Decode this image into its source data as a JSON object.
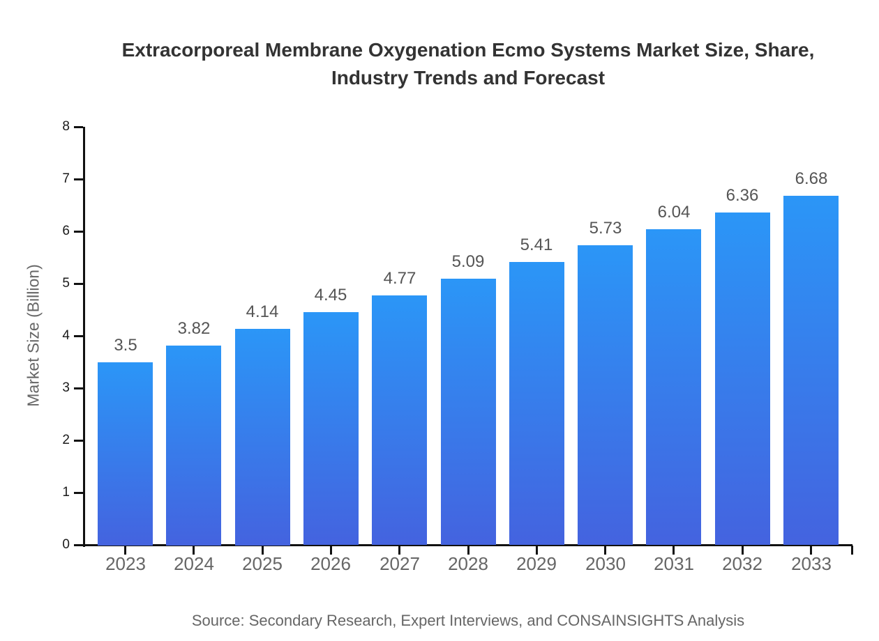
{
  "title": {
    "line1": "Extracorporeal Membrane Oxygenation Ecmo Systems Market Size, Share,",
    "line2": "Industry Trends and Forecast"
  },
  "y_axis": {
    "label": "Market Size (Billion)",
    "ticks": [
      0,
      1,
      2,
      3,
      4,
      5,
      6,
      7,
      8
    ],
    "max": 8
  },
  "source": "Source: Secondary Research, Expert Interviews, and CONSAINSIGHTS Analysis",
  "colors": {
    "bar_gradient_top": "#2b96f7",
    "bar_gradient_bottom": "#4463df",
    "axis": "#111111",
    "title_text": "#333333",
    "y_tick_label": "#1a1a1a",
    "x_tick_label": "#666666",
    "value_label": "#555555",
    "source_text": "#666666"
  },
  "chart_data": {
    "type": "bar",
    "categories": [
      "2023",
      "2024",
      "2025",
      "2026",
      "2027",
      "2028",
      "2029",
      "2030",
      "2031",
      "2032",
      "2033"
    ],
    "values": [
      3.5,
      3.82,
      4.14,
      4.45,
      4.77,
      5.09,
      5.41,
      5.73,
      6.04,
      6.36,
      6.68
    ],
    "title": "Extracorporeal Membrane Oxygenation Ecmo Systems Market Size, Share, Industry Trends and Forecast",
    "xlabel": "",
    "ylabel": "Market Size (Billion)",
    "ylim": [
      0,
      8
    ],
    "grid": false,
    "legend": null,
    "value_labels_shown": true
  }
}
